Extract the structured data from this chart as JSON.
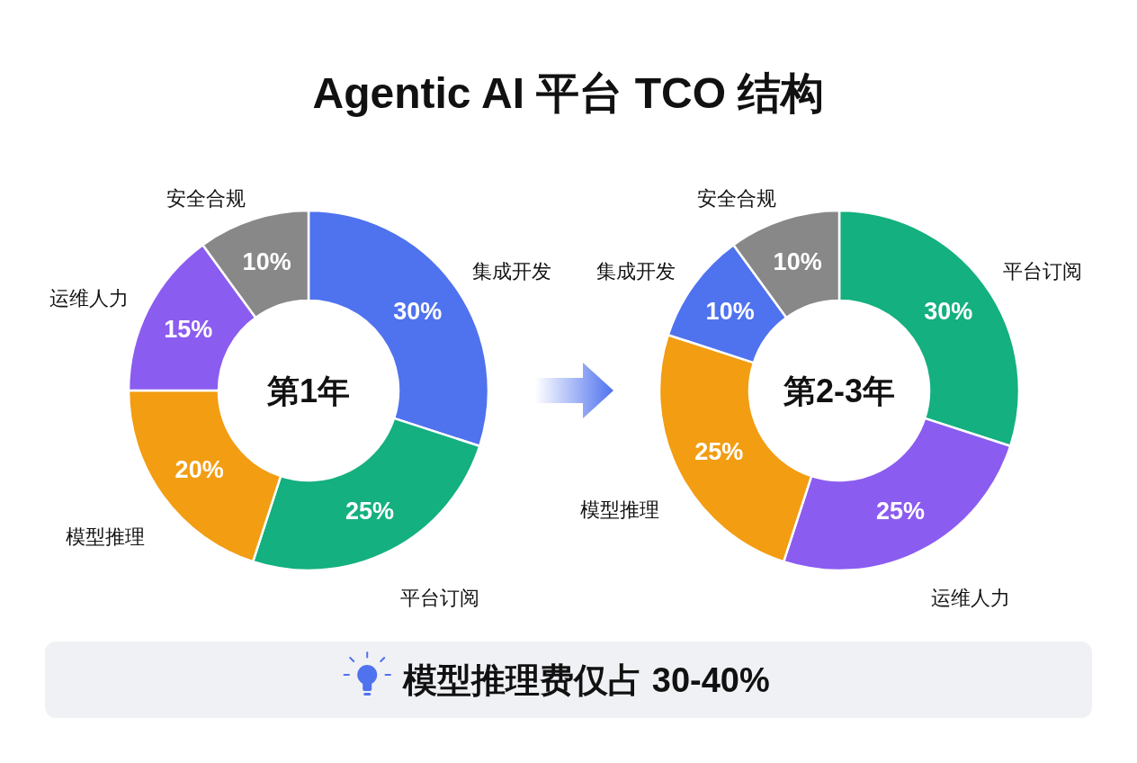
{
  "chart_data": [
    {
      "type": "donut",
      "title": "Agentic AI 平台 TCO 结构",
      "annotations": [
        "第1年"
      ],
      "categories": [
        "集成开发",
        "平台订阅",
        "模型推理",
        "运维人力",
        "安全合规"
      ],
      "values": [
        30,
        25,
        20,
        15,
        10
      ],
      "value_labels": [
        "30%",
        "25%",
        "20%",
        "15%",
        "10%"
      ],
      "colors": [
        "#4f72ee",
        "#14b07f",
        "#f29d12",
        "#8b5cf0",
        "#888888"
      ]
    },
    {
      "type": "donut",
      "annotations": [
        "第2-3年",
        "模型推理费仅占 30-40%"
      ],
      "categories": [
        "平台订阅",
        "运维人力",
        "模型推理",
        "集成开发",
        "安全合规"
      ],
      "values": [
        30,
        25,
        25,
        10,
        10
      ],
      "value_labels": [
        "30%",
        "25%",
        "25%",
        "10%",
        "10%"
      ],
      "colors": [
        "#14b07f",
        "#8b5cf0",
        "#f29d12",
        "#4f72ee",
        "#888888"
      ]
    }
  ]
}
